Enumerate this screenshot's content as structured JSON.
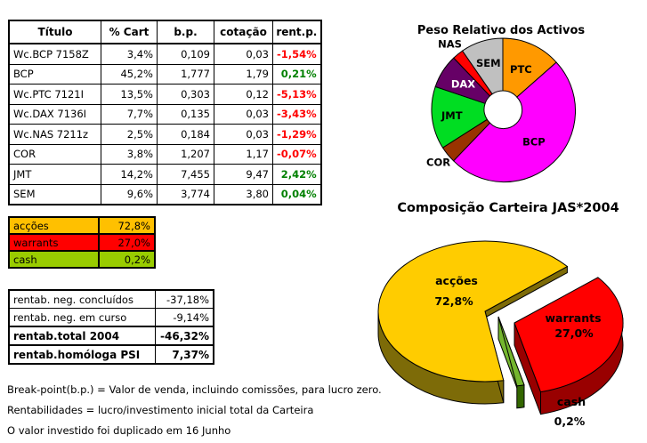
{
  "portfolio_table": {
    "headers": [
      "Título",
      "% Cart",
      "b.p.",
      "cotação",
      "rent.p."
    ],
    "rows": [
      [
        "Wc.BCP 7158Z",
        "3,4%",
        "0,109",
        "0,03",
        "-1,54%"
      ],
      [
        "BCP",
        "45,2%",
        "1,777",
        "1,79",
        "0,21%"
      ],
      [
        "Wc.PTC 7121I",
        "13,5%",
        "0,303",
        "0,12",
        "-5,13%"
      ],
      [
        "Wc.DAX 7136I",
        "7,7%",
        "0,135",
        "0,03",
        "-3,43%"
      ],
      [
        "Wc.NAS 7211z",
        "2,5%",
        "0,184",
        "0,03",
        "-1,29%"
      ],
      [
        "COR",
        "3,8%",
        "1,207",
        "1,17",
        "-0,07%"
      ],
      [
        "JMT",
        "14,2%",
        "7,455",
        "9,47",
        "2,42%"
      ],
      [
        "SEM",
        "9,6%",
        "3,774",
        "3,80",
        "0,04%"
      ]
    ],
    "positive_color": "#008000",
    "negative_color": "#FF0000"
  },
  "allocation_table": {
    "rows": [
      {
        "label": "acções",
        "value": "72,8%",
        "color": "#FFC000"
      },
      {
        "label": "warrants",
        "value": "27,0%",
        "color": "#FF0000"
      },
      {
        "label": "cash",
        "value": "0,2%",
        "color": "#99CC00"
      }
    ]
  },
  "returns_table": {
    "rows": [
      {
        "label": "rentab. neg. concluídos",
        "value": "-37,18%",
        "bold": false
      },
      {
        "label": "rentab. neg. em curso",
        "value": "-9,14%",
        "bold": false
      },
      {
        "label": "rentab.total 2004",
        "value": "-46,32%",
        "bold": true
      },
      {
        "label": "rentab.homóloga PSI",
        "value": "7,37%",
        "bold": true
      }
    ]
  },
  "notes": [
    "Break-point(b.p.) = Valor de venda, incluindo comissões, para lucro zero.",
    "Rentabilidades = lucro/investimento inicial total da Carteira",
    "O valor investido foi duplicado em 16 Junho"
  ],
  "chart_data": [
    {
      "type": "donut",
      "title": "Peso Relativo dos Activos",
      "start_angle_deg": 0,
      "direction": "clockwise",
      "hole": true,
      "slices": [
        {
          "label": "PTC",
          "value": 13.5,
          "color": "#FF9900",
          "label_placement": "inside",
          "label_r": 0.62
        },
        {
          "label": "BCP",
          "value": 48.6,
          "color": "#FF00FF",
          "label_placement": "inside",
          "label_r": 0.63
        },
        {
          "label": "COR",
          "value": 3.8,
          "color": "#993300",
          "label_placement": "outside",
          "label_r": 1.17
        },
        {
          "label": "JMT",
          "value": 14.2,
          "color": "#00DD22",
          "label_placement": "inside",
          "label_r": 0.72
        },
        {
          "label": "DAX",
          "value": 7.7,
          "color": "#660066",
          "label_placement": "inside",
          "label_r": 0.66,
          "label_color": "#FFFFFF"
        },
        {
          "label": "NAS",
          "value": 2.5,
          "color": "#FF0000",
          "label_placement": "outside",
          "label_r": 1.18
        },
        {
          "label": "SEM",
          "value": 9.6,
          "color": "#C0C0C0",
          "label_placement": "inside",
          "label_r": 0.68
        }
      ]
    },
    {
      "type": "pie3d",
      "title": "Composição Carteira JAS*2004",
      "exploded": "warrants",
      "slices": [
        {
          "label": "acções",
          "pct_label": "72,8%",
          "value": 72.8,
          "color": "#FFCC00",
          "side_color": "#7D6B08"
        },
        {
          "label": "warrants",
          "pct_label": "27,0%",
          "value": 27.0,
          "color": "#FF0000",
          "side_color": "#990000"
        },
        {
          "label": "cash",
          "pct_label": "0,2%",
          "value": 0.2,
          "color": "#74B62E",
          "side_color": "#336600"
        }
      ]
    }
  ]
}
